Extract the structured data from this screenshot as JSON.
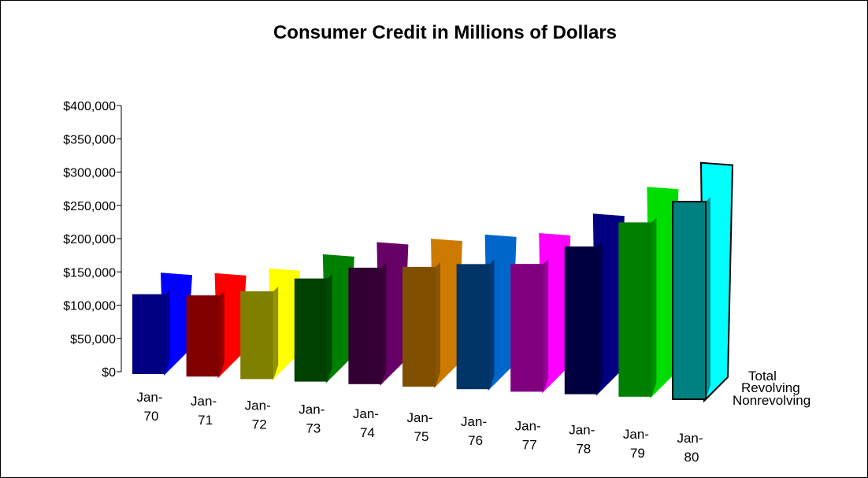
{
  "chart_data": {
    "type": "bar",
    "title": "Consumer Credit in Millions of Dollars",
    "xlabel": "",
    "ylabel": "",
    "ylim": [
      0,
      400000
    ],
    "yticks": [
      "$0",
      "$50,000",
      "$100,000",
      "$150,000",
      "$200,000",
      "$250,000",
      "$300,000",
      "$350,000",
      "$400,000"
    ],
    "categories": [
      [
        "Jan-",
        "70"
      ],
      [
        "Jan-",
        "71"
      ],
      [
        "Jan-",
        "72"
      ],
      [
        "Jan-",
        "73"
      ],
      [
        "Jan-",
        "74"
      ],
      [
        "Jan-",
        "75"
      ],
      [
        "Jan-",
        "76"
      ],
      [
        "Jan-",
        "77"
      ],
      [
        "Jan-",
        "78"
      ],
      [
        "Jan-",
        "79"
      ],
      [
        "Jan-",
        "80"
      ]
    ],
    "series": [
      {
        "name": "Nonrevolving",
        "values": [
          120000,
          122000,
          132000,
          155000,
          175000,
          180000,
          188000,
          192000,
          222000,
          262000,
          297000
        ]
      },
      {
        "name": "Revolving",
        "values": [
          4000,
          5000,
          6000,
          8000,
          10000,
          14000,
          16000,
          18000,
          21000,
          25000,
          30000
        ]
      },
      {
        "name": "Total",
        "values": [
          124000,
          127000,
          138000,
          163000,
          185000,
          194000,
          204000,
          210000,
          243000,
          287000,
          327000
        ]
      }
    ],
    "bar_colors": [
      [
        "#000080",
        "#0000FF"
      ],
      [
        "#800000",
        "#FF0000"
      ],
      [
        "#808000",
        "#FFFF00"
      ],
      [
        "#004000",
        "#008000"
      ],
      [
        "#330033",
        "#660066"
      ],
      [
        "#805000",
        "#CC7A00"
      ],
      [
        "#003366",
        "#0066CC"
      ],
      [
        "#800080",
        "#FF00FF"
      ],
      [
        "#000040",
        "#000080"
      ],
      [
        "#008000",
        "#00DD00"
      ],
      [
        "#008080",
        "#00FFFF"
      ]
    ],
    "grid": false,
    "legend": "series labels at right end of depth axis"
  }
}
